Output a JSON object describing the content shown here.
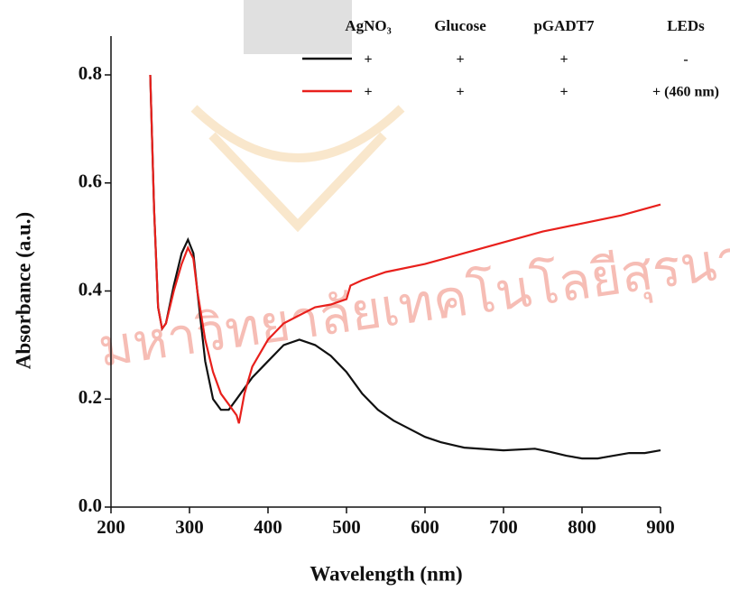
{
  "chart_data": {
    "type": "line",
    "xlabel": "Wavelength (nm)",
    "ylabel": "Absorbance (a.u.)",
    "watermark": "มหาวิทยาลัยเทคโนโลยีสุรนารี",
    "xlim": [
      200,
      900
    ],
    "xticks": [
      200,
      300,
      400,
      500,
      600,
      700,
      800,
      900
    ],
    "ylim": [
      0,
      0.8
    ],
    "yticks": [
      {
        "value": 0,
        "label": "0.0"
      },
      0.2,
      0.4,
      0.6,
      0.8
    ],
    "legend_table": {
      "columns": [
        "AgNO₃",
        "Glucose",
        "pGADT7",
        "LEDs"
      ],
      "rows": [
        [
          "+",
          "+",
          "+",
          "-"
        ],
        [
          "+",
          "+",
          "+",
          "+ (460 nm)"
        ]
      ]
    },
    "series": [
      {
        "color": "#111111",
        "x": [
          250,
          255,
          260,
          265,
          270,
          280,
          290,
          298,
          305,
          310,
          320,
          330,
          340,
          350,
          360,
          370,
          380,
          400,
          420,
          440,
          460,
          480,
          500,
          520,
          540,
          560,
          580,
          600,
          620,
          650,
          700,
          740,
          760,
          780,
          800,
          820,
          840,
          860,
          880,
          900
        ],
        "values": [
          0.8,
          0.55,
          0.37,
          0.33,
          0.34,
          0.41,
          0.47,
          0.495,
          0.47,
          0.4,
          0.27,
          0.2,
          0.18,
          0.18,
          0.2,
          0.22,
          0.24,
          0.27,
          0.3,
          0.31,
          0.3,
          0.28,
          0.25,
          0.21,
          0.18,
          0.16,
          0.145,
          0.13,
          0.12,
          0.11,
          0.105,
          0.108,
          0.102,
          0.095,
          0.09,
          0.09,
          0.095,
          0.1,
          0.1,
          0.105
        ]
      },
      {
        "color": "#e8201c",
        "x": [
          250,
          255,
          260,
          265,
          270,
          280,
          290,
          298,
          305,
          310,
          320,
          330,
          340,
          350,
          360,
          363,
          370,
          380,
          400,
          420,
          440,
          460,
          480,
          500,
          505,
          520,
          550,
          600,
          650,
          700,
          750,
          800,
          850,
          900
        ],
        "values": [
          0.8,
          0.55,
          0.37,
          0.33,
          0.34,
          0.4,
          0.45,
          0.48,
          0.46,
          0.4,
          0.31,
          0.25,
          0.21,
          0.19,
          0.17,
          0.155,
          0.21,
          0.26,
          0.31,
          0.34,
          0.355,
          0.37,
          0.375,
          0.385,
          0.41,
          0.42,
          0.435,
          0.45,
          0.47,
          0.49,
          0.51,
          0.525,
          0.54,
          0.56
        ]
      }
    ]
  }
}
